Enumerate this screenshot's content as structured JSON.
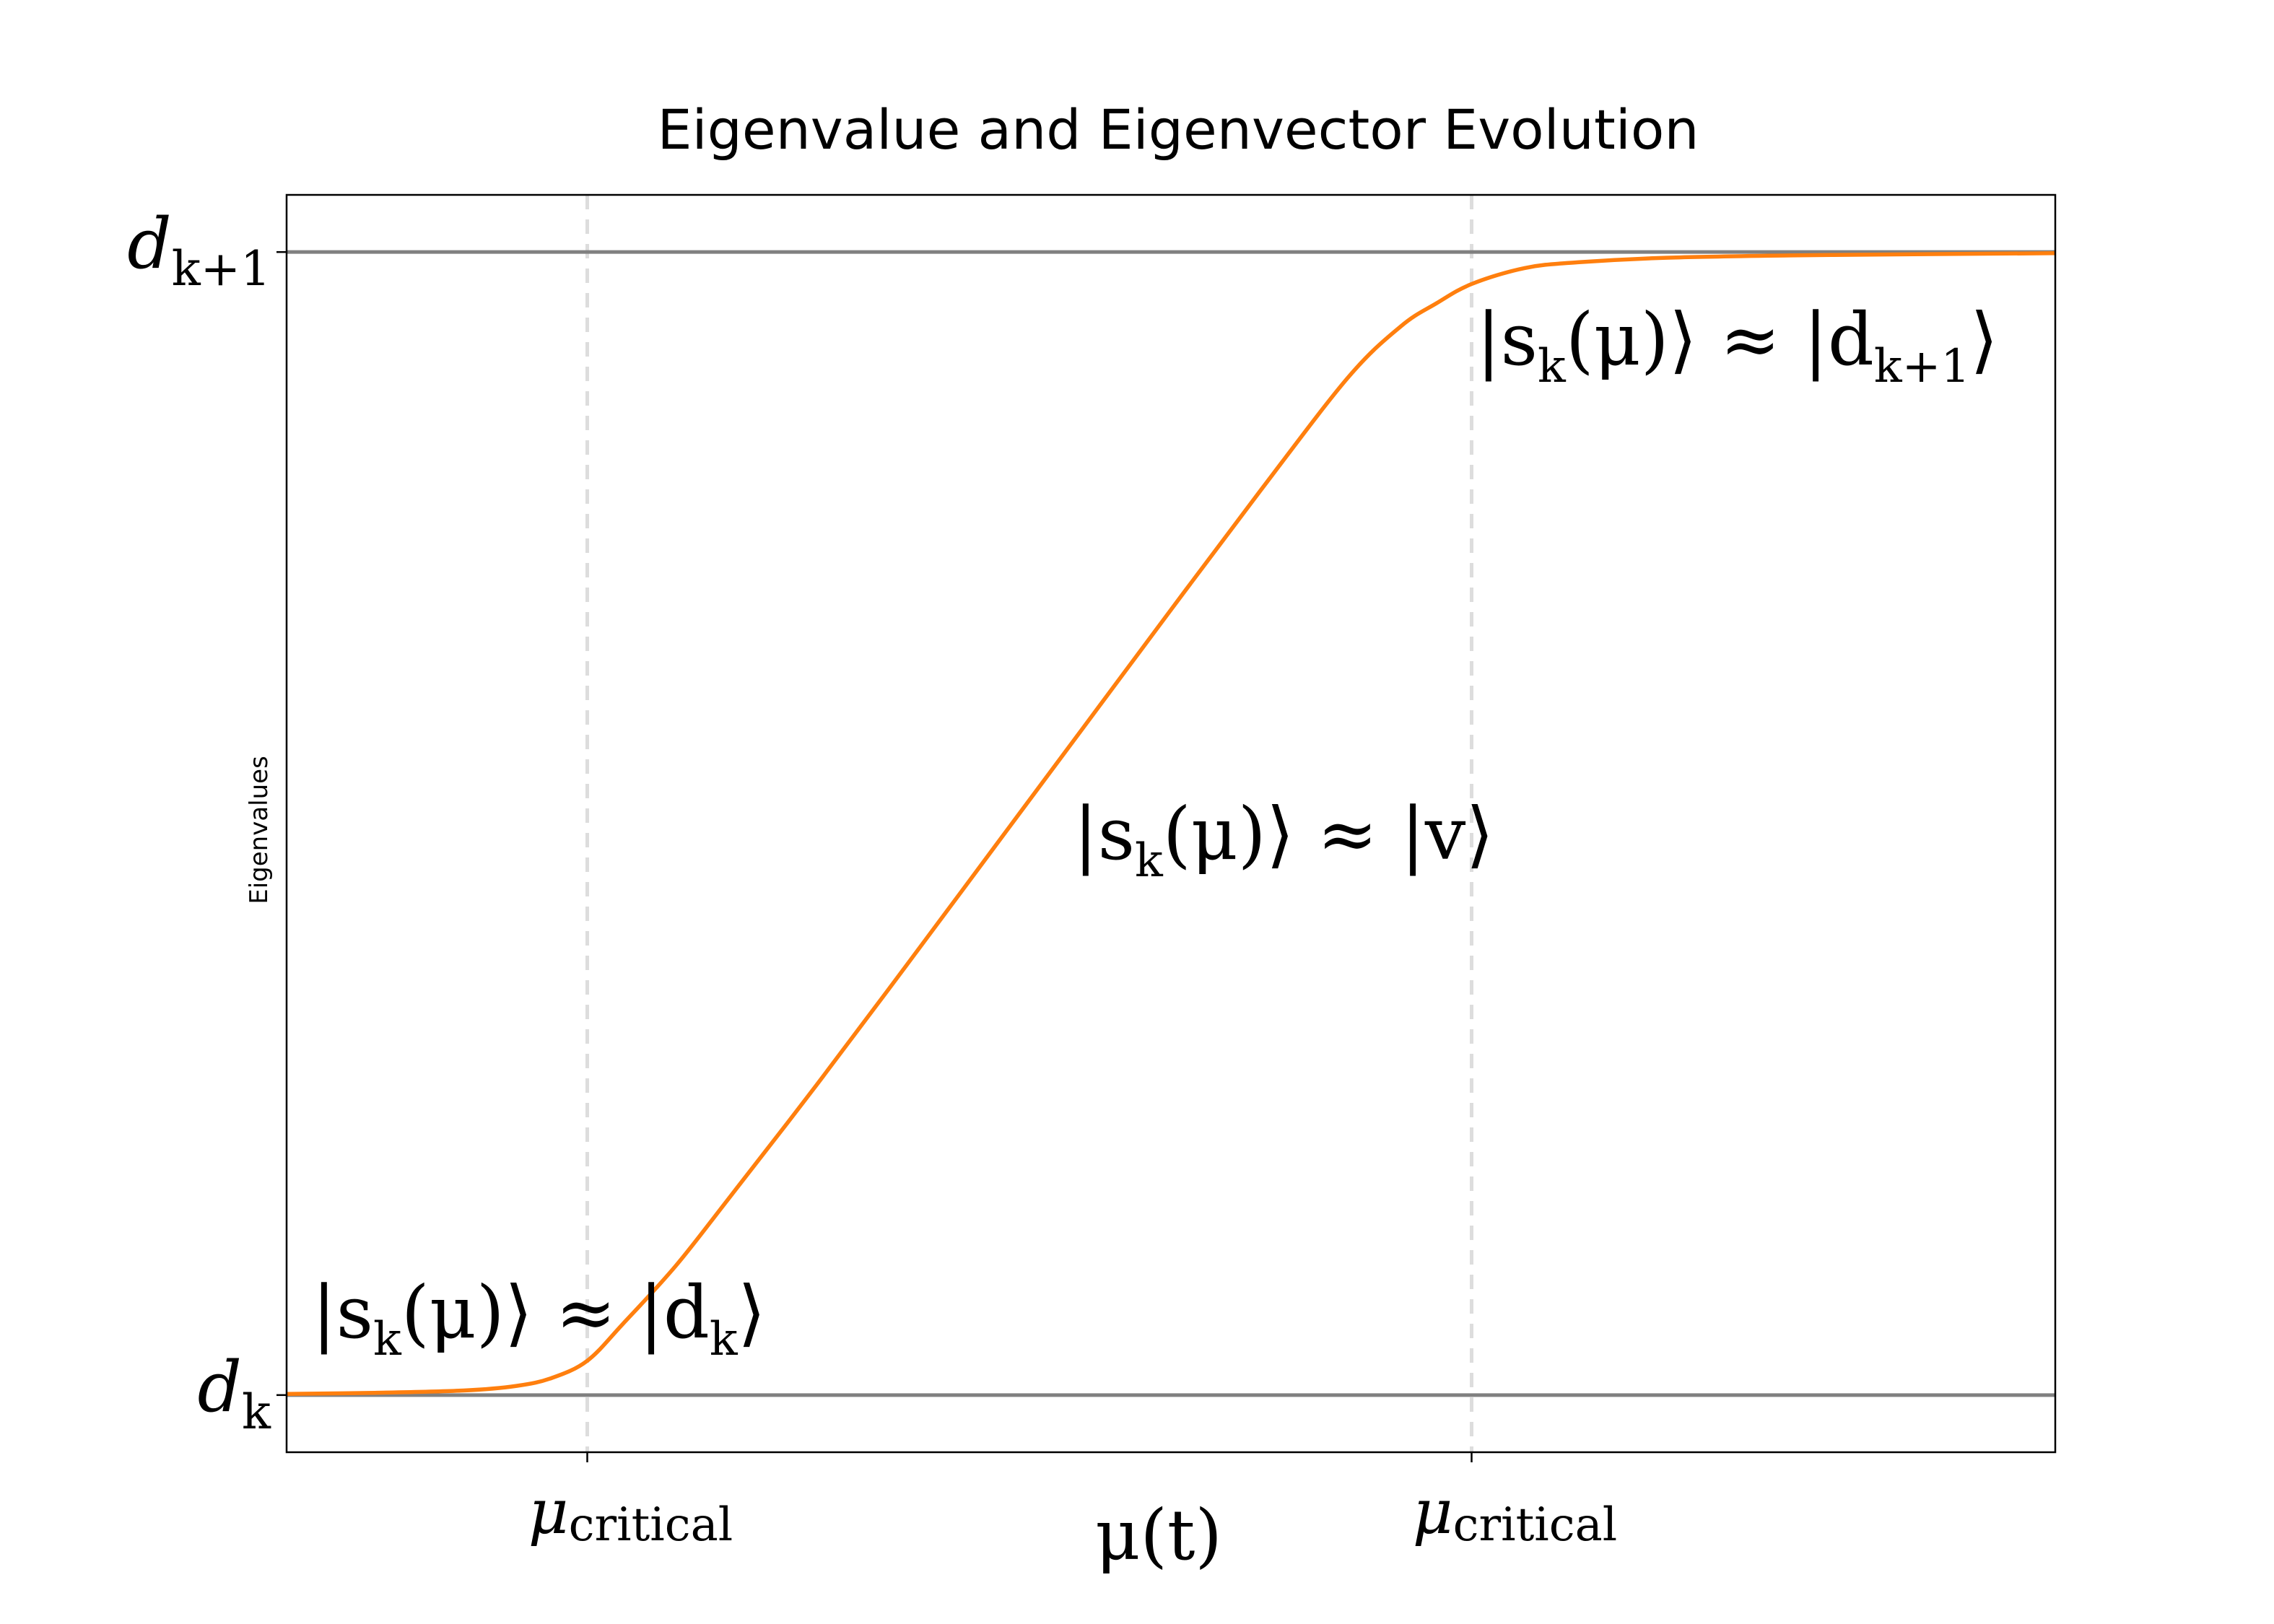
{
  "chart_data": {
    "type": "line",
    "title": "Eigenvalue and Eigenvector Evolution",
    "xlabel": "μ(t)",
    "ylabel": "Eigenvalues",
    "xlim": [
      0,
      1
    ],
    "ylim": [
      -0.05,
      1.05
    ],
    "grid": false,
    "x_ticks": [
      {
        "value": 0.17,
        "main": "μ",
        "sub": "critical"
      },
      {
        "value": 0.67,
        "main": "μ",
        "sub": "critical"
      }
    ],
    "y_ticks": [
      {
        "value": 0,
        "main": "d",
        "sub": "k"
      },
      {
        "value": 1,
        "main": "d",
        "sub": "k+1"
      }
    ],
    "hlines": [
      {
        "value": 0,
        "color": "#808080"
      },
      {
        "value": 1,
        "color": "#808080"
      }
    ],
    "vlines": [
      {
        "value": 0.17,
        "color": "#dddddd",
        "style": "dashed"
      },
      {
        "value": 0.67,
        "color": "#dddddd",
        "style": "dashed"
      }
    ],
    "series": [
      {
        "color": "#ff7f0e",
        "x": [
          0.0,
          0.05,
          0.1,
          0.13,
          0.15,
          0.17,
          0.19,
          0.22,
          0.25,
          0.3,
          0.35,
          0.4,
          0.45,
          0.5,
          0.55,
          0.6,
          0.63,
          0.65,
          0.67,
          0.7,
          0.73,
          0.78,
          0.85,
          0.92,
          1.0
        ],
        "y": [
          0.001,
          0.002,
          0.004,
          0.008,
          0.015,
          0.03,
          0.062,
          0.113,
          0.172,
          0.272,
          0.375,
          0.479,
          0.583,
          0.687,
          0.79,
          0.89,
          0.935,
          0.955,
          0.972,
          0.986,
          0.991,
          0.995,
          0.997,
          0.998,
          0.999
        ]
      }
    ],
    "annotations": [
      {
        "text": "|s_k(μ)⟩ ≈ |d_k⟩",
        "x": 0.02,
        "y": 0.07
      },
      {
        "text": "|s_k(μ)⟩ ≈ |v⟩",
        "x": 0.45,
        "y": 0.49
      },
      {
        "text": "|s_k(μ)⟩ ≈ |d_{k+1}⟩",
        "x": 0.675,
        "y": 0.905
      }
    ]
  }
}
